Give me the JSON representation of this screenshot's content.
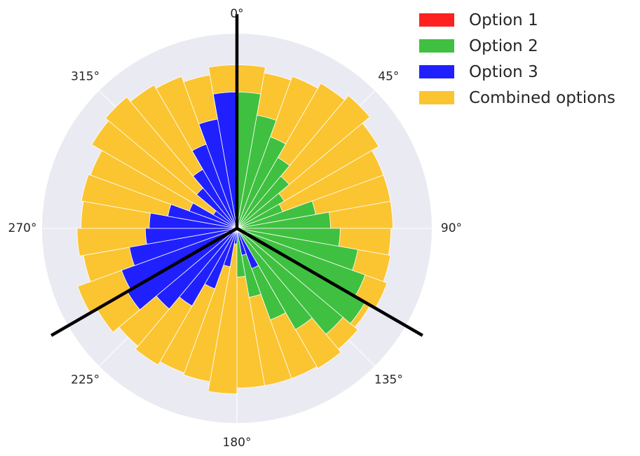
{
  "chart_data": {
    "type": "polar-bar",
    "theta_direction": "clockwise",
    "theta_zero": "top",
    "theta_tick_labels": [
      "0°",
      "45°",
      "90°",
      "135°",
      "180°",
      "225°",
      "270°",
      "315°"
    ],
    "grid": true,
    "r_max": 1.0,
    "legend_placement": "top-right, outside",
    "series": [
      {
        "name": "Option 1",
        "color": "#ff2020",
        "key": "option1"
      },
      {
        "name": "Option 2",
        "color": "#40c040",
        "key": "option2"
      },
      {
        "name": "Option 3",
        "color": "#2020ff",
        "key": "option3"
      },
      {
        "name": "Combined options",
        "color": "#fbc531",
        "key": "combined"
      }
    ],
    "bin_width_deg": 10,
    "bin_centers_deg": [
      5,
      15,
      25,
      35,
      45,
      55,
      65,
      75,
      85,
      95,
      105,
      115,
      125,
      135,
      145,
      155,
      165,
      175,
      185,
      195,
      205,
      215,
      225,
      235,
      245,
      255,
      265,
      275,
      285,
      295,
      305,
      315,
      325,
      335,
      345,
      355
    ],
    "option1": [
      0.69,
      0.58,
      0.48,
      0.4,
      0.33,
      0.26,
      0,
      0,
      0,
      0,
      0,
      0,
      0,
      0,
      0,
      0,
      0,
      0,
      0,
      0,
      0,
      0,
      0,
      0,
      0,
      0,
      0,
      0,
      0,
      0,
      0.12,
      0.22,
      0.32,
      0.43,
      0.56,
      0.69
    ],
    "option2": [
      0.7,
      0.59,
      0.5,
      0.42,
      0.35,
      0.28,
      0.25,
      0.41,
      0.48,
      0.53,
      0.63,
      0.7,
      0.76,
      0.71,
      0.6,
      0.5,
      0.36,
      0.25,
      0,
      0,
      0,
      0,
      0,
      0,
      0,
      0,
      0,
      0,
      0,
      0,
      0,
      0,
      0,
      0,
      0,
      0
    ],
    "option3": [
      0,
      0,
      0,
      0,
      0,
      0,
      0,
      0,
      0,
      0,
      0,
      0,
      0,
      0,
      0,
      0.22,
      0.14,
      0,
      0.08,
      0.2,
      0.33,
      0.46,
      0.54,
      0.65,
      0.63,
      0.56,
      0.47,
      0.45,
      0.36,
      0.26,
      0.14,
      0.27,
      0.35,
      0.46,
      0.57,
      0.7
    ],
    "combined": [
      0.84,
      0.81,
      0.83,
      0.86,
      0.89,
      0.84,
      0.8,
      0.8,
      0.8,
      0.79,
      0.8,
      0.82,
      0.79,
      0.81,
      0.83,
      0.82,
      0.82,
      0.82,
      0.85,
      0.8,
      0.79,
      0.81,
      0.79,
      0.83,
      0.87,
      0.8,
      0.82,
      0.8,
      0.81,
      0.8,
      0.86,
      0.88,
      0.85,
      0.83,
      0.8,
      0.84
    ],
    "reference_lines_deg": [
      0,
      120,
      240
    ]
  }
}
